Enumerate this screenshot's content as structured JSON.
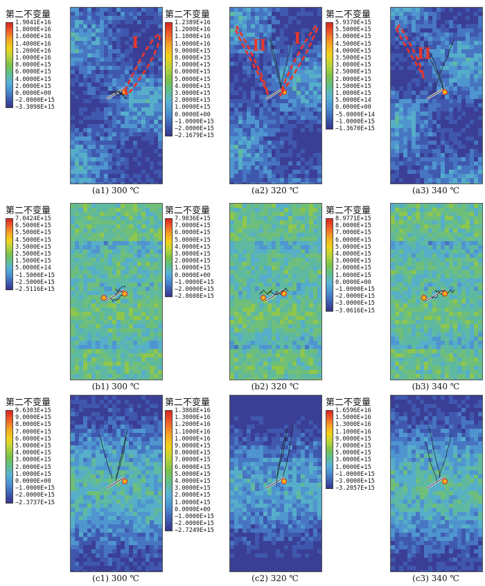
{
  "figure": {
    "panels": [
      {
        "id": "a1",
        "title": "第二不变量",
        "caption": "(a1) 300 ℃",
        "ticks": [
          "1.9041E+16",
          "1.8000E+16",
          "1.6000E+16",
          "1.4000E+16",
          "1.2000E+16",
          "1.0000E+16",
          "8.0000E+15",
          "6.0000E+15",
          "4.0000E+15",
          "2.0000E+15",
          "0.0000E+00",
          "−2.0000E+15",
          "−3.3098E+15"
        ],
        "regions": [
          "I"
        ]
      },
      {
        "id": "a2",
        "title": "第二不变量",
        "caption": "(a2) 320 ℃",
        "ticks": [
          "1.2389E+16",
          "1.2000E+16",
          "1.1000E+16",
          "1.0000E+16",
          "9.0000E+15",
          "8.0000E+15",
          "7.0000E+15",
          "6.0000E+15",
          "5.0000E+15",
          "4.0000E+15",
          "3.0000E+15",
          "2.0000E+15",
          "1.0000E+15",
          "0.0000E+00",
          "−1.0000E+15",
          "−2.0000E+15",
          "−2.1679E+15"
        ],
        "regions": [
          "II",
          "I"
        ]
      },
      {
        "id": "a3",
        "title": "第二不变量",
        "caption": "(a3) 340 ℃",
        "ticks": [
          "5.9370E+15",
          "5.5000E+15",
          "5.0000E+15",
          "4.5000E+15",
          "4.0000E+15",
          "3.5000E+15",
          "3.0000E+15",
          "2.5000E+15",
          "2.0000E+15",
          "1.5000E+15",
          "1.0000E+15",
          "5.0000E+14",
          "0.0000E+00",
          "−5.0000E+14",
          "−1.0000E+15",
          "−1.3670E+15"
        ],
        "regions": [
          "II"
        ]
      },
      {
        "id": "b1",
        "title": "第二不变量",
        "caption": "(b1) 300 ℃",
        "ticks": [
          "7.0424E+15",
          "6.5000E+15",
          "5.5000E+15",
          "4.5000E+15",
          "3.5000E+15",
          "2.5000E+15",
          "1.5000E+15",
          "5.0000E+14",
          "−1.5000E+15",
          "−2.5000E+15",
          "−2.5116E+15"
        ],
        "regions": []
      },
      {
        "id": "b2",
        "title": "第二不变量",
        "caption": "(b2) 320 ℃",
        "ticks": [
          "7.9836E+15",
          "7.0000E+15",
          "6.0000E+15",
          "5.0000E+15",
          "4.0000E+15",
          "3.0000E+15",
          "2.0000E+15",
          "1.0000E+15",
          "0.0000E+00",
          "−1.0000E+15",
          "−2.0000E+15",
          "−2.8608E+15"
        ],
        "regions": []
      },
      {
        "id": "b3",
        "title": "第二不变量",
        "caption": "(b3) 340 ℃",
        "ticks": [
          "8.9771E+15",
          "8.0000E+15",
          "7.0000E+15",
          "6.0000E+15",
          "5.0000E+15",
          "4.0000E+15",
          "3.0000E+15",
          "2.0000E+15",
          "1.0000E+15",
          "0.0000E+00",
          "−1.0000E+15",
          "−2.0000E+15",
          "−3.0000E+15",
          "−3.0616E+15"
        ],
        "regions": []
      },
      {
        "id": "c1",
        "title": "第二不变量",
        "caption": "(c1) 300 ℃",
        "ticks": [
          "9.6303E+15",
          "9.0000E+15",
          "8.0000E+15",
          "7.0000E+15",
          "6.0000E+15",
          "5.0000E+15",
          "4.0000E+15",
          "3.0000E+15",
          "2.0000E+15",
          "1.0000E+15",
          "0.0000E+00",
          "−1.0000E+15",
          "−2.0000E+15",
          "−2.3737E+15"
        ],
        "regions": []
      },
      {
        "id": "c2",
        "title": "第二不变量",
        "caption": "(c2) 320 ℃",
        "ticks": [
          "1.3868E+16",
          "1.3000E+16",
          "1.2000E+16",
          "1.1000E+16",
          "1.0000E+16",
          "9.0000E+15",
          "8.0000E+15",
          "7.0000E+15",
          "6.0000E+15",
          "5.0000E+15",
          "4.0000E+15",
          "3.0000E+15",
          "2.0000E+15",
          "1.0000E+15",
          "0.0000E+00",
          "−1.0000E+15",
          "−2.0000E+15",
          "−2.7249E+15"
        ],
        "regions": []
      },
      {
        "id": "c3",
        "title": "第二不变量",
        "caption": "(c3) 340 ℃",
        "ticks": [
          "1.6596E+16",
          "1.5000E+16",
          "1.3000E+16",
          "1.1000E+16",
          "9.0000E+15",
          "7.0000E+15",
          "5.0000E+15",
          "3.0000E+15",
          "1.0000E+15",
          "−1.0000E+15",
          "−3.0000E+15",
          "−3.2057E+15"
        ],
        "regions": []
      }
    ],
    "colors": {
      "scale": [
        "#d7261e",
        "#f0612a",
        "#f5a623",
        "#f2d21a",
        "#b8d43a",
        "#7cc24a",
        "#5fbf8c",
        "#58b3d6",
        "#4a8fd0",
        "#3e5fb4",
        "#35348a"
      ],
      "annotation": "#e8372c",
      "crack": "#1c1c1c"
    }
  }
}
